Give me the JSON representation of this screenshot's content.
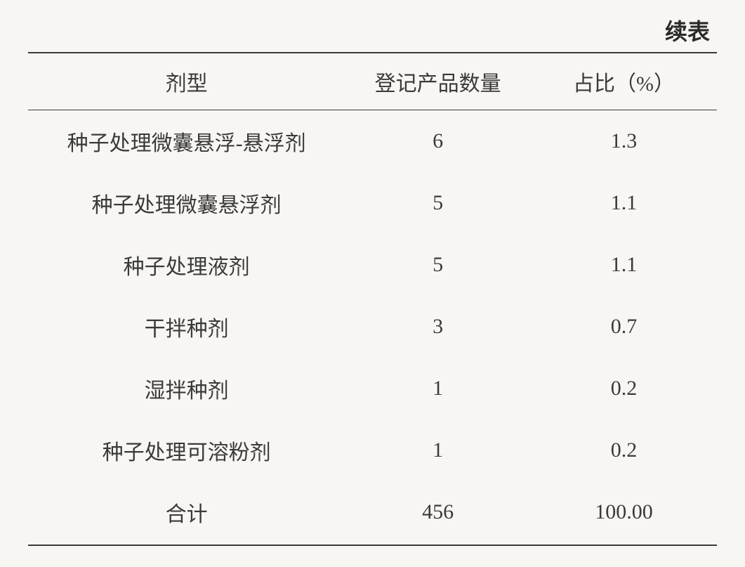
{
  "table": {
    "type": "table",
    "continuation_label": "续表",
    "background_color": "#f8f6f3",
    "text_color": "#3a3a3a",
    "border_color": "#3a3a3a",
    "font_family": "SimSun",
    "header_fontsize": 30,
    "body_fontsize": 30,
    "columns": [
      {
        "key": "formulation",
        "label": "剂型",
        "width": "46%",
        "align": "center"
      },
      {
        "key": "count",
        "label": "登记产品数量",
        "width": "27%",
        "align": "center"
      },
      {
        "key": "percent",
        "label": "占比（%）",
        "width": "27%",
        "align": "center"
      }
    ],
    "rows": [
      {
        "formulation": "种子处理微囊悬浮-悬浮剂",
        "count": "6",
        "percent": "1.3"
      },
      {
        "formulation": "种子处理微囊悬浮剂",
        "count": "5",
        "percent": "1.1"
      },
      {
        "formulation": "种子处理液剂",
        "count": "5",
        "percent": "1.1"
      },
      {
        "formulation": "干拌种剂",
        "count": "3",
        "percent": "0.7"
      },
      {
        "formulation": "湿拌种剂",
        "count": "1",
        "percent": "0.2"
      },
      {
        "formulation": "种子处理可溶粉剂",
        "count": "1",
        "percent": "0.2"
      },
      {
        "formulation": "合计",
        "count": "456",
        "percent": "100.00"
      }
    ]
  }
}
